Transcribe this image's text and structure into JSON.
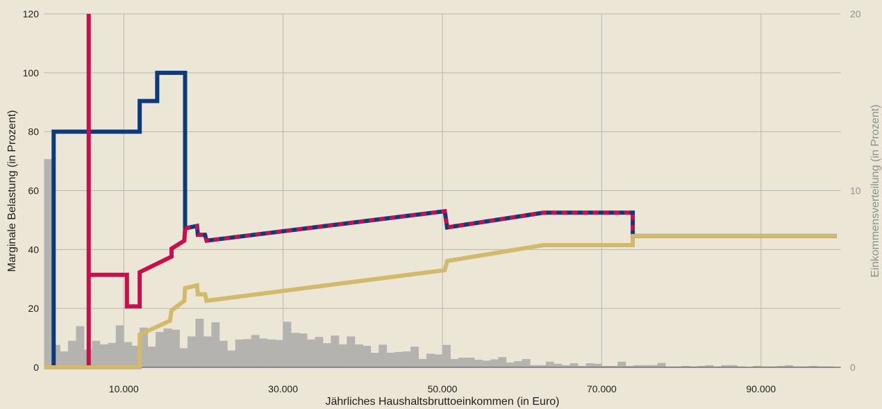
{
  "colors": {
    "background": "#ebe6d5",
    "grid": "#b7b6b2",
    "axis_line": "#444444",
    "axis_text": "#1e1e1e",
    "secondary_axis_text": "#8f8f8f"
  },
  "chart_data": {
    "type": "line",
    "xlabel": "Jährliches Haushaltsbruttoeinkommen (in Euro)",
    "ylabel": "Marginale Belastung (in Prozent)",
    "y2label": "Einkommensverteilung (in Prozent)",
    "xlim": [
      0,
      100000
    ],
    "ylim": [
      0,
      120
    ],
    "y2lim": [
      0,
      20
    ],
    "x_ticks": [
      10000,
      30000,
      50000,
      70000,
      90000
    ],
    "x_tick_labels": [
      "10.000",
      "30.000",
      "50.000",
      "70.000",
      "90.000"
    ],
    "y_ticks": [
      0,
      20,
      40,
      60,
      80,
      100,
      120
    ],
    "y_tick_labels": [
      "0",
      "20",
      "40",
      "60",
      "80",
      "100",
      "120"
    ],
    "y2_ticks": [
      0,
      10,
      20
    ],
    "y2_tick_labels": [
      "0",
      "10",
      "20"
    ],
    "grid": true,
    "series": [
      {
        "color": "#0b3b7c",
        "points": [
          [
            1200,
            0
          ],
          [
            1200,
            80
          ],
          [
            12000,
            80
          ],
          [
            12000,
            90.4
          ],
          [
            14200,
            90.4
          ],
          [
            14200,
            100
          ],
          [
            17700,
            100
          ],
          [
            17700,
            47.2
          ],
          [
            19200,
            48.0
          ],
          [
            19300,
            45.0
          ],
          [
            20200,
            45.0
          ],
          [
            20400,
            43.0
          ],
          [
            50300,
            53.0
          ],
          [
            50600,
            47.5
          ],
          [
            62700,
            52.5
          ],
          [
            73900,
            52.5
          ],
          [
            73900,
            44.6
          ],
          [
            99500,
            44.6
          ]
        ]
      },
      {
        "color": "#c70f4e",
        "points": [
          [
            5600,
            0
          ],
          [
            5600,
            120
          ],
          [
            5600,
            31.4
          ],
          [
            10400,
            31.4
          ],
          [
            10400,
            20.7
          ],
          [
            12000,
            20.7
          ],
          [
            12000,
            32.3
          ],
          [
            16000,
            37.6
          ],
          [
            16000,
            40.3
          ],
          [
            17600,
            43.0
          ],
          [
            17700,
            47.2
          ],
          [
            19200,
            48.0
          ],
          [
            19300,
            45.0
          ],
          [
            20200,
            45.0
          ],
          [
            20400,
            43.0
          ],
          [
            50300,
            53.0
          ],
          [
            50600,
            47.5
          ],
          [
            62700,
            52.5
          ],
          [
            73900,
            52.5
          ],
          [
            73900,
            44.6
          ],
          [
            99500,
            44.6
          ]
        ]
      },
      {
        "color": "#d2b96b",
        "points": [
          [
            0,
            0
          ],
          [
            12000,
            0
          ],
          [
            12000,
            11.1
          ],
          [
            15800,
            15.8
          ],
          [
            16000,
            19.3
          ],
          [
            17600,
            22.6
          ],
          [
            17700,
            26.9
          ],
          [
            19200,
            27.8
          ],
          [
            19300,
            24.8
          ],
          [
            20200,
            24.8
          ],
          [
            20400,
            22.6
          ],
          [
            50300,
            33.0
          ],
          [
            50600,
            36.1
          ],
          [
            62700,
            41.5
          ],
          [
            73900,
            41.5
          ],
          [
            73900,
            44.6
          ],
          [
            99500,
            44.6
          ]
        ]
      }
    ],
    "y2_histogram": {
      "bin_start": 0,
      "bin_width": 1000,
      "color": "#b5b3af",
      "values": [
        11.78,
        1.27,
        0.9,
        1.5,
        2.33,
        1.0,
        1.5,
        1.3,
        1.38,
        2.38,
        1.43,
        1.22,
        2.25,
        1.17,
        2.0,
        2.2,
        2.13,
        1.08,
        1.75,
        2.75,
        1.75,
        2.55,
        1.5,
        0.95,
        1.57,
        1.6,
        1.83,
        1.63,
        1.58,
        1.55,
        2.58,
        1.95,
        1.92,
        1.58,
        1.72,
        1.37,
        1.8,
        1.3,
        1.75,
        1.3,
        1.22,
        0.82,
        1.28,
        0.83,
        0.87,
        0.9,
        1.17,
        0.47,
        0.77,
        0.73,
        1.27,
        0.47,
        0.55,
        0.55,
        0.43,
        0.38,
        0.45,
        0.58,
        0.27,
        0.35,
        0.47,
        0.12,
        0.12,
        0.32,
        0.2,
        0.12,
        0.23,
        0.08,
        0.23,
        0.2,
        0.08,
        0.08,
        0.32,
        0.08,
        0.12,
        0.12,
        0.12,
        0.25,
        0.05,
        0.05,
        0.08,
        0.05,
        0.08,
        0.12,
        0.05,
        0.12,
        0.12,
        0.05,
        0.03,
        0.08,
        0.05,
        0.05,
        0.08,
        0.12,
        0.05,
        0.05,
        0.08,
        0.05,
        0.05,
        0.03
      ]
    }
  }
}
